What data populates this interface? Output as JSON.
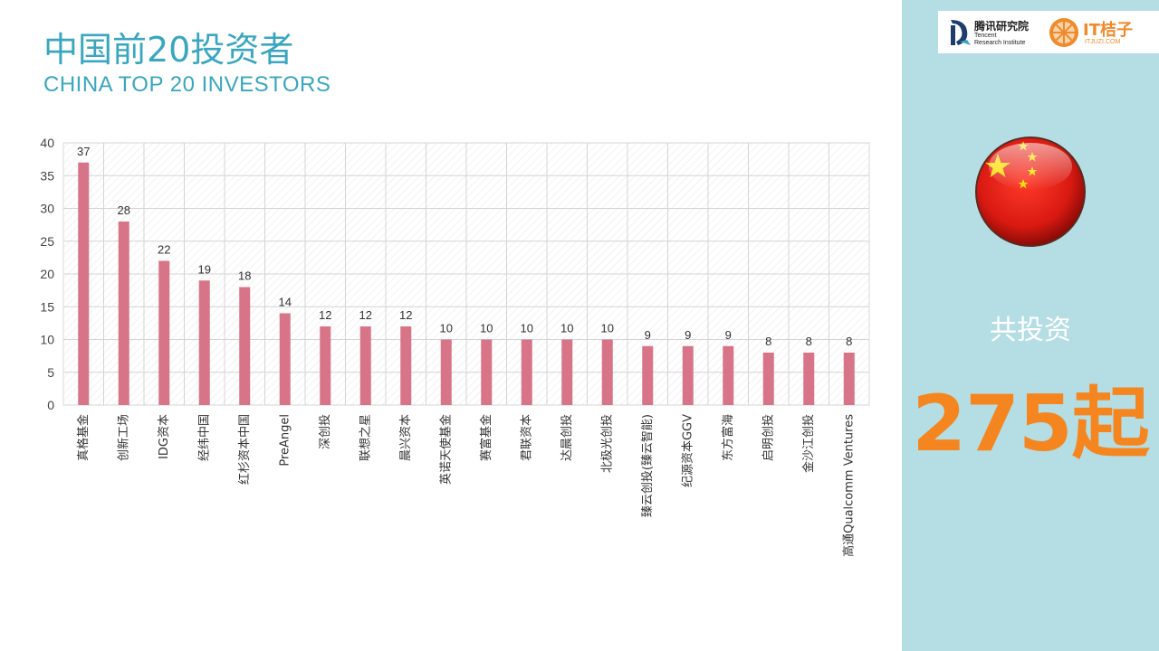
{
  "header": {
    "title_cn": "中国前20投资者",
    "title_en": "CHINA TOP 20 INVESTORS"
  },
  "logos": {
    "tencent_cn": "腾讯研究院",
    "tencent_en_line1": "Tencent",
    "tencent_en_line2": "Research Institute",
    "itjuzi_name": "IT桔子",
    "itjuzi_url": "ITJUZI.COM"
  },
  "summary": {
    "label": "共投资",
    "value": "275起"
  },
  "colors": {
    "bar": "#d87487",
    "accent_title": "#3aa6bf",
    "panel": "#b5dde4",
    "total": "#f5861f"
  },
  "chart_data": {
    "type": "bar",
    "title": "",
    "xlabel": "",
    "ylabel": "",
    "ylim": [
      0,
      40
    ],
    "yticks": [
      0,
      5,
      10,
      15,
      20,
      25,
      30,
      35,
      40
    ],
    "grid": true,
    "categories": [
      "真格基金",
      "创新工场",
      "IDG资本",
      "经纬中国",
      "红杉资本中国",
      "PreAngel",
      "深创投",
      "联想之星",
      "晨兴资本",
      "英诺天使基金",
      "赛富基金",
      "君联资本",
      "达晨创投",
      "北极光创投",
      "臻云创投(臻云智能)",
      "纪源资本GGV",
      "东方富海",
      "启明创投",
      "金沙江创投",
      "高通Qualcomm Ventures"
    ],
    "values": [
      37,
      28,
      22,
      19,
      18,
      14,
      12,
      12,
      12,
      10,
      10,
      10,
      10,
      10,
      9,
      9,
      9,
      8,
      8,
      8
    ]
  }
}
